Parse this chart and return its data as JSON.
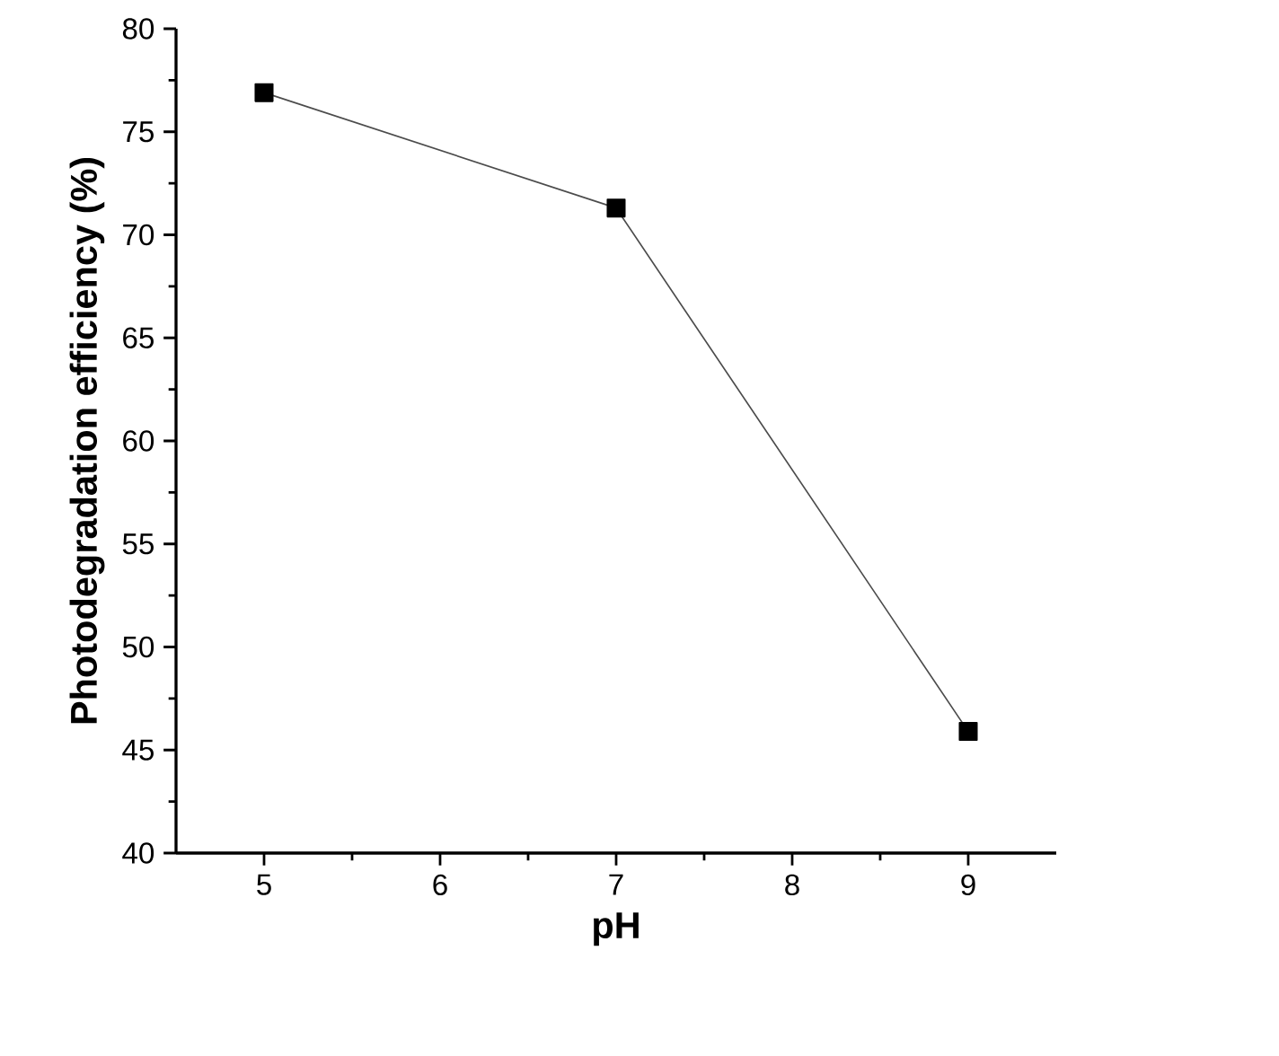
{
  "chart_data": {
    "type": "line",
    "xlabel": "pH",
    "ylabel": "Photodegradation efficiency (%)",
    "x": [
      5,
      7,
      9
    ],
    "values": [
      76.9,
      71.3,
      45.9
    ],
    "color": "#000000",
    "marker": "square",
    "line_style": "solid",
    "xlim": [
      4.5,
      9.5
    ],
    "ylim": [
      40,
      80
    ],
    "xticks": [
      5,
      6,
      7,
      8,
      9
    ],
    "yticks": [
      40,
      45,
      50,
      55,
      60,
      65,
      70,
      75,
      80
    ],
    "grid": false
  }
}
